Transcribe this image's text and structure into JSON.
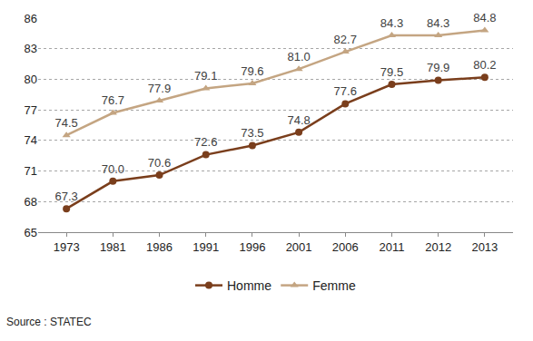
{
  "chart_data": {
    "type": "line",
    "categories": [
      "1973",
      "1981",
      "1986",
      "1991",
      "1996",
      "2001",
      "2006",
      "2011",
      "2012",
      "2013"
    ],
    "series": [
      {
        "name": "Homme",
        "color": "#7a3e1c",
        "marker": "circle",
        "values": [
          67.3,
          70.0,
          70.6,
          72.6,
          73.5,
          74.8,
          77.6,
          79.5,
          79.9,
          80.2
        ],
        "value_labels": [
          "67.3",
          "70.0",
          "70.6",
          "72.6",
          "73.5",
          "74.8",
          "77.6",
          "79.5",
          "79.9",
          "80.2"
        ]
      },
      {
        "name": "Femme",
        "color": "#c4a582",
        "marker": "triangle-up",
        "values": [
          74.5,
          76.7,
          77.9,
          79.1,
          79.6,
          81.0,
          82.7,
          84.3,
          84.3,
          84.8
        ],
        "value_labels": [
          "74.5",
          "76.7",
          "77.9",
          "79.1",
          "79.6",
          "81.0",
          "82.7",
          "84.3",
          "84.3",
          "84.8"
        ]
      }
    ],
    "ylim": [
      65,
      86
    ],
    "yticks": [
      65,
      68,
      71,
      74,
      77,
      80,
      83,
      86
    ],
    "grid": true,
    "legend": "bottom",
    "data_labels": true,
    "annotations": [
      "Source : STATEC"
    ]
  }
}
